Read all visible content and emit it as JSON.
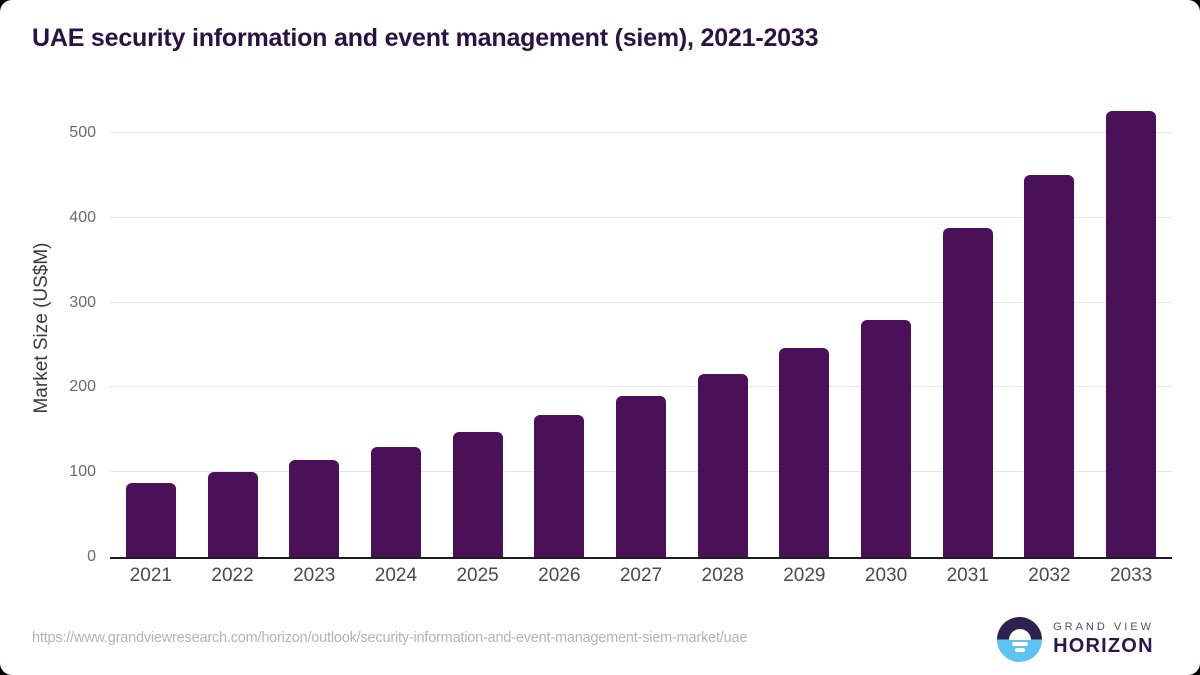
{
  "title": "UAE security information and event management (siem), 2021-2033",
  "chart_data": {
    "type": "bar",
    "title": "UAE security information and event management (siem), 2021-2033",
    "categories": [
      "2021",
      "2022",
      "2023",
      "2024",
      "2025",
      "2026",
      "2027",
      "2028",
      "2029",
      "2030",
      "2031",
      "2032",
      "2033"
    ],
    "values": [
      87,
      100,
      114,
      130,
      148,
      168,
      190,
      216,
      246,
      279,
      388,
      451,
      526
    ],
    "xlabel": "",
    "ylabel": "Market Size (US$M)",
    "y_ticks": [
      0,
      100,
      200,
      300,
      400,
      500
    ],
    "ylim": [
      0,
      539
    ],
    "grid": true,
    "legend": "none",
    "bar_color": "#4a1158"
  },
  "colors": {
    "title_text": "#2c1240",
    "bar": "#4a1158",
    "gridline": "#e8e8e8",
    "axis_line": "#1c1c1c",
    "logo_purple": "#2e2150",
    "logo_blue": "#5ec3f0"
  },
  "footer": {
    "source_url": "https://www.grandviewresearch.com/horizon/outlook/security-information-and-event-management-siem-market/uae",
    "brand_line1": "GRAND VIEW",
    "brand_line2": "HORIZON"
  }
}
